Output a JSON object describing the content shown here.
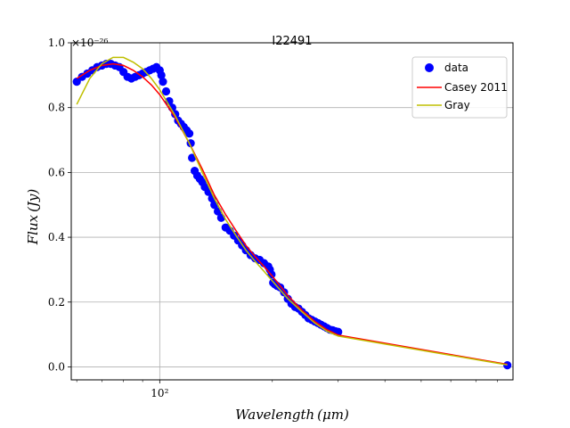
{
  "chart_data": {
    "type": "line",
    "title": "I22491",
    "xlabel": "Wavelength (μm)",
    "ylabel": "Flux (Jy)",
    "y_multiplier": "×10⁻²⁶",
    "x_scale": "log",
    "xlim": [
      58,
      880
    ],
    "ylim": [
      -0.04,
      1.0
    ],
    "x_major_ticks": [
      {
        "value": 100,
        "label": "10²"
      }
    ],
    "x_minor_ticks": [
      60,
      70,
      80,
      90,
      200,
      300,
      400,
      500,
      600,
      700,
      800
    ],
    "y_ticks": [
      {
        "value": 0.0,
        "label": "0.0"
      },
      {
        "value": 0.2,
        "label": "0.2"
      },
      {
        "value": 0.4,
        "label": "0.4"
      },
      {
        "value": 0.6,
        "label": "0.6"
      },
      {
        "value": 0.8,
        "label": "0.8"
      },
      {
        "value": 1.0,
        "label": "1.0"
      }
    ],
    "grid": true,
    "legend_position": "top-right",
    "colors": {
      "data": "#0000ff",
      "casey": "#ff0000",
      "gray": "#bfbf00"
    },
    "series": [
      {
        "name": "data",
        "kind": "scatter",
        "x": [
          60,
          62,
          64,
          66,
          68,
          70,
          72,
          74,
          76,
          78,
          80,
          82,
          84,
          86,
          88,
          90,
          92,
          94,
          96,
          98,
          100,
          101,
          102,
          104,
          106,
          108,
          110,
          112,
          114,
          116,
          118,
          120,
          121,
          122,
          124,
          126,
          128,
          130,
          132,
          135,
          138,
          140,
          143,
          146,
          150,
          154,
          158,
          162,
          166,
          170,
          175,
          180,
          185,
          190,
          195,
          197,
          199,
          201,
          203,
          206,
          210,
          215,
          220,
          225,
          230,
          235,
          240,
          245,
          250,
          255,
          260,
          265,
          270,
          275,
          280,
          285,
          290,
          295,
          300,
          850
        ],
        "y": [
          0.88,
          0.895,
          0.905,
          0.915,
          0.925,
          0.93,
          0.935,
          0.935,
          0.93,
          0.925,
          0.91,
          0.895,
          0.89,
          0.895,
          0.9,
          0.905,
          0.91,
          0.915,
          0.92,
          0.925,
          0.915,
          0.9,
          0.88,
          0.85,
          0.82,
          0.8,
          0.78,
          0.76,
          0.75,
          0.74,
          0.73,
          0.72,
          0.69,
          0.645,
          0.605,
          0.59,
          0.58,
          0.57,
          0.555,
          0.54,
          0.52,
          0.5,
          0.48,
          0.46,
          0.43,
          0.42,
          0.405,
          0.39,
          0.375,
          0.36,
          0.345,
          0.335,
          0.33,
          0.32,
          0.31,
          0.3,
          0.285,
          0.26,
          0.255,
          0.25,
          0.245,
          0.23,
          0.21,
          0.195,
          0.185,
          0.18,
          0.17,
          0.16,
          0.15,
          0.145,
          0.14,
          0.135,
          0.13,
          0.125,
          0.12,
          0.115,
          0.113,
          0.11,
          0.108,
          0.005
        ]
      },
      {
        "name": "Casey 2011",
        "kind": "line",
        "x": [
          60,
          65,
          70,
          75,
          80,
          85,
          90,
          95,
          100,
          110,
          120,
          130,
          140,
          150,
          160,
          170,
          180,
          190,
          200,
          220,
          240,
          260,
          280,
          300,
          850
        ],
        "y": [
          0.89,
          0.915,
          0.93,
          0.935,
          0.93,
          0.915,
          0.895,
          0.87,
          0.84,
          0.77,
          0.69,
          0.61,
          0.53,
          0.47,
          0.42,
          0.375,
          0.34,
          0.31,
          0.28,
          0.22,
          0.175,
          0.14,
          0.115,
          0.098,
          0.008
        ]
      },
      {
        "name": "Gray",
        "kind": "line",
        "x": [
          60,
          65,
          70,
          75,
          80,
          85,
          90,
          95,
          100,
          110,
          120,
          130,
          140,
          150,
          160,
          170,
          180,
          190,
          200,
          220,
          240,
          260,
          280,
          300,
          850
        ],
        "y": [
          0.81,
          0.89,
          0.935,
          0.955,
          0.955,
          0.94,
          0.92,
          0.89,
          0.855,
          0.775,
          0.69,
          0.6,
          0.52,
          0.455,
          0.405,
          0.36,
          0.325,
          0.295,
          0.265,
          0.21,
          0.17,
          0.135,
          0.11,
          0.095,
          0.006
        ]
      }
    ]
  }
}
